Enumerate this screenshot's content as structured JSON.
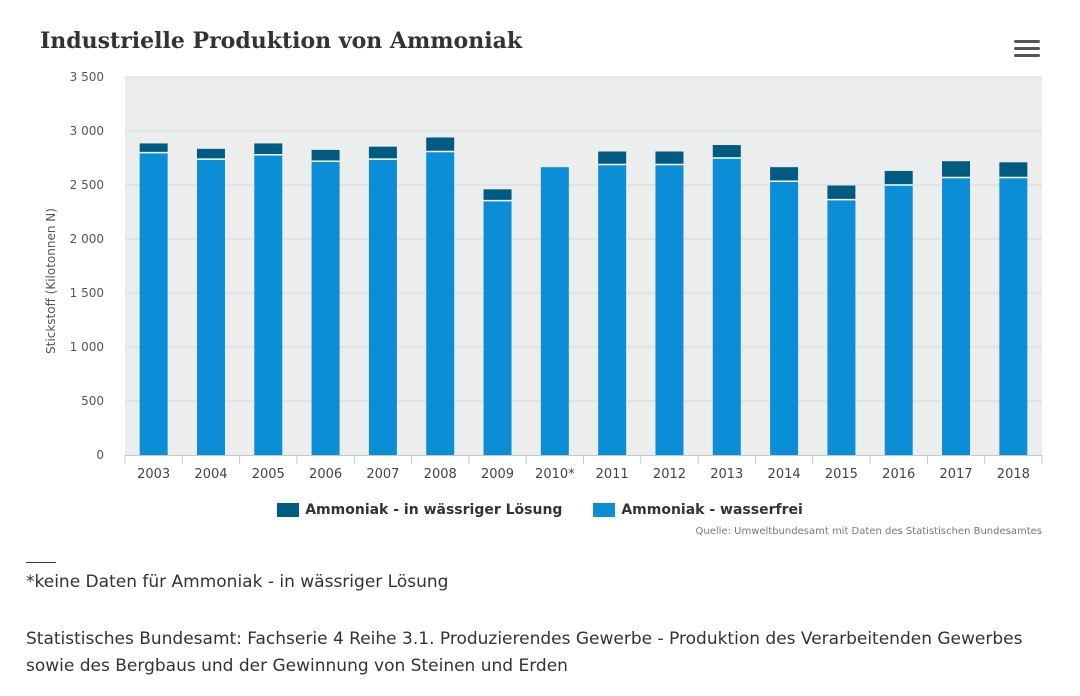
{
  "title": "Industrielle Produktion von Ammoniak",
  "menu_icon": "hamburger-menu-icon",
  "colors": {
    "plot_background": "#eceeee",
    "grid": "#d8dada",
    "wasserfrei": "#0b8ed6",
    "waessrig": "#005b82",
    "separator": "#ffffff"
  },
  "chart_data": {
    "type": "bar",
    "stacked": true,
    "ylabel": "Stickstoff (Kilotonnen N)",
    "xlabel": "",
    "ylim": [
      0,
      3500
    ],
    "yticks": [
      0,
      500,
      1000,
      1500,
      2000,
      2500,
      3000,
      3500
    ],
    "ytick_labels": [
      "0",
      "500",
      "1 000",
      "1 500",
      "2 000",
      "2 500",
      "3 000",
      "3 500"
    ],
    "grid": true,
    "legend_position": "bottom-center",
    "categories": [
      "2003",
      "2004",
      "2005",
      "2006",
      "2007",
      "2008",
      "2009",
      "2010*",
      "2011",
      "2012",
      "2013",
      "2014",
      "2015",
      "2016",
      "2017",
      "2018"
    ],
    "series": [
      {
        "name": "Ammoniak - wasserfrei",
        "color": "#0b8ed6",
        "values": [
          2800,
          2740,
          2780,
          2720,
          2740,
          2810,
          2355,
          2665,
          2690,
          2690,
          2750,
          2535,
          2365,
          2500,
          2570,
          2570
        ]
      },
      {
        "name": "Ammoniak - in wässriger Lösung",
        "color": "#005b82",
        "values": [
          85,
          95,
          105,
          105,
          115,
          130,
          105,
          0,
          120,
          120,
          120,
          130,
          130,
          130,
          150,
          140
        ]
      }
    ],
    "legend_order": [
      1,
      0
    ]
  },
  "source": "Quelle: Umweltbundesamt mit Daten des Statistischen Bundesamtes",
  "footnote": "*keine Daten für Ammoniak - in wässriger Lösung",
  "reference": "Statistisches Bundesamt: Fachserie 4 Reihe 3.1. Produzierendes Gewerbe - Produktion des Verarbeitenden Gewerbes sowie des Bergbaus und der Gewinnung von Steinen und Erden"
}
